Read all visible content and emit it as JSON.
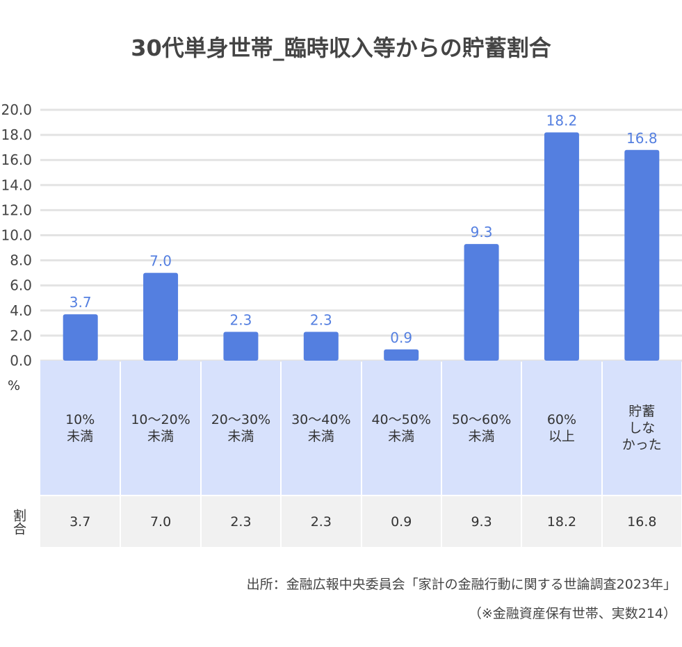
{
  "chart_data": {
    "type": "bar",
    "title": "30代単身世帯_臨時収入等からの貯蓄割合",
    "unit_label": "%",
    "row_label": "割合",
    "categories": [
      "10%\n未満",
      "10〜20%\n未満",
      "20〜30%\n未満",
      "30〜40%\n未満",
      "40〜50%\n未満",
      "50〜60%\n未満",
      "60%\n以上",
      "貯蓄\nしな\nかった"
    ],
    "values": [
      3.7,
      7.0,
      2.3,
      2.3,
      0.9,
      9.3,
      18.2,
      16.8
    ],
    "value_labels": [
      "3.7",
      "7.0",
      "2.3",
      "2.3",
      "0.9",
      "9.3",
      "18.2",
      "16.8"
    ],
    "ylim": [
      0,
      20
    ],
    "yticks": [
      "0.0",
      "2.0",
      "4.0",
      "6.0",
      "8.0",
      "10.0",
      "12.0",
      "14.0",
      "16.0",
      "18.0",
      "20.0"
    ],
    "grid": true,
    "colors": {
      "bar": "#547fe0",
      "label": "#547fe0",
      "category_bg": "#d7e1fc",
      "table_bg": "#f1f1f1"
    }
  },
  "source": {
    "line1": "出所：金融広報中央委員会「家計の金融行動に関する世論調査2023年」",
    "line2": "（※金融資産保有世帯、実数214）"
  }
}
